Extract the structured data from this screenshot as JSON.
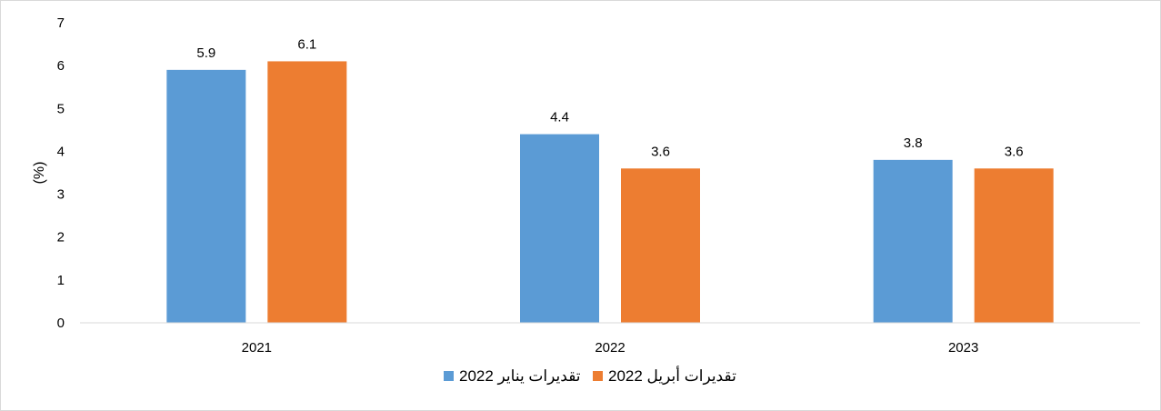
{
  "chart_data": {
    "type": "bar",
    "title": "",
    "xlabel": "",
    "ylabel": "(%)",
    "ylim": [
      0,
      7
    ],
    "yticks": [
      0,
      1,
      2,
      3,
      4,
      5,
      6,
      7
    ],
    "grid": false,
    "legend_position": "bottom-center",
    "categories": [
      "2021",
      "2022",
      "2023"
    ],
    "series": [
      {
        "name": "تقديرات يناير 2022",
        "color": "#5b9bd5",
        "values": [
          5.9,
          4.4,
          3.8
        ],
        "labels": [
          "5.9",
          "4.4",
          "3.8"
        ]
      },
      {
        "name": "تقديرات أبريل 2022",
        "color": "#ed7d31",
        "values": [
          6.1,
          3.6,
          3.6
        ],
        "labels": [
          "6.1",
          "3.6",
          "3.6"
        ]
      }
    ]
  }
}
